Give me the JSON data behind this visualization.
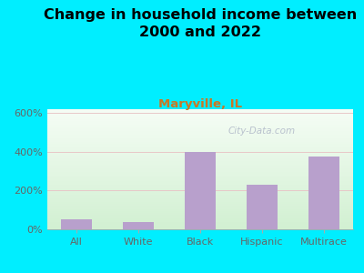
{
  "title": "Change in household income between\n2000 and 2022",
  "subtitle": "Maryville, IL",
  "categories": [
    "All",
    "White",
    "Black",
    "Hispanic",
    "Multirace"
  ],
  "values": [
    50,
    38,
    400,
    230,
    378
  ],
  "bar_color": "#b8a0cc",
  "title_fontsize": 11.5,
  "subtitle_fontsize": 9.5,
  "subtitle_color": "#cc7722",
  "title_color": "#000000",
  "background_outer": "#00eeff",
  "ylim": [
    0,
    620
  ],
  "yticks": [
    0,
    200,
    400,
    600
  ],
  "ytick_labels": [
    "0%",
    "200%",
    "400%",
    "600%"
  ],
  "watermark": "City-Data.com",
  "watermark_color": "#b0b8c8",
  "grid_color": "#e8c8c8",
  "tick_label_color": "#666666",
  "tick_label_fontsize": 8,
  "axis_label_fontsize": 8
}
